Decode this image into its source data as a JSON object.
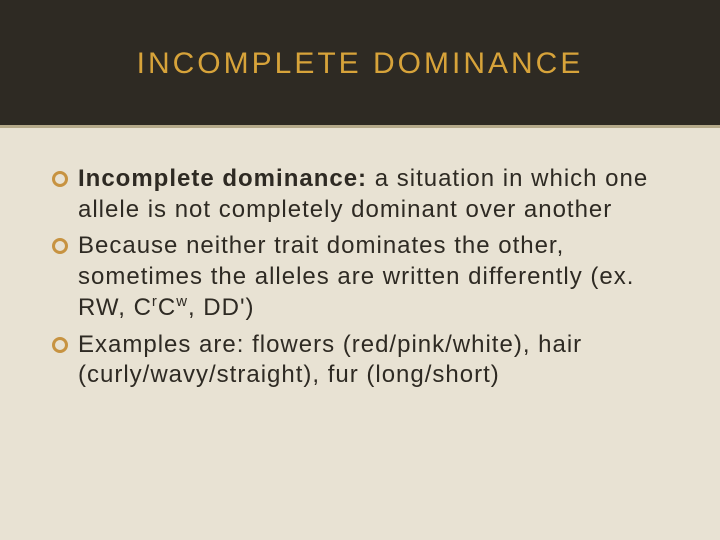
{
  "slide": {
    "title": "INCOMPLETE DOMINANCE",
    "title_color": "#d7a33a",
    "title_fontsize": 30,
    "title_letter_spacing": 3,
    "header_bg": "#2e2a23",
    "header_underline_color": "#b5aa8a",
    "body_bg": "#e8e2d3",
    "bullet_ring_color": "#c79341",
    "text_color": "#2e2a23",
    "body_fontsize": 24,
    "body_letter_spacing": 1,
    "bullets": [
      {
        "bold_lead": "Incomplete dominance:",
        "rest": " a situation in which one allele is not completely dominant over another"
      },
      {
        "bold_lead": "",
        "rest_pre": "Because neither trait dominates the other, sometimes the alleles are written differently (ex. RW, C",
        "sup1": "r",
        "mid1": "C",
        "sup2": "w",
        "rest_post": ", DD')"
      },
      {
        "bold_lead": "",
        "rest": "Examples are: flowers (red/pink/white), hair (curly/wavy/straight), fur (long/short)"
      }
    ]
  }
}
